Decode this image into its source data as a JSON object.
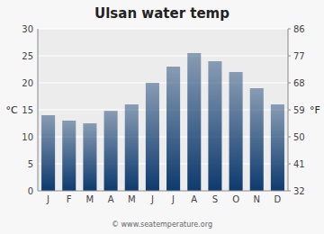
{
  "chart_data": {
    "type": "bar",
    "title": "Ulsan water temp",
    "categories": [
      "J",
      "F",
      "M",
      "A",
      "M",
      "J",
      "J",
      "A",
      "S",
      "O",
      "N",
      "D"
    ],
    "values": [
      14.0,
      13.0,
      12.5,
      14.8,
      16.0,
      20.0,
      23.0,
      25.5,
      24.0,
      22.0,
      19.0,
      16.0
    ],
    "color": "#0d3a6e",
    "ylabel": "°C",
    "y2label": "°F",
    "ylim": [
      0,
      30
    ],
    "yticks": [
      0,
      5,
      10,
      15,
      20,
      25,
      30
    ],
    "y2lim": [
      32,
      86
    ],
    "y2ticks": [
      32,
      41,
      50,
      59,
      68,
      77,
      86
    ],
    "grid": true,
    "annotations": [
      "© www.seatemperature.org"
    ]
  }
}
